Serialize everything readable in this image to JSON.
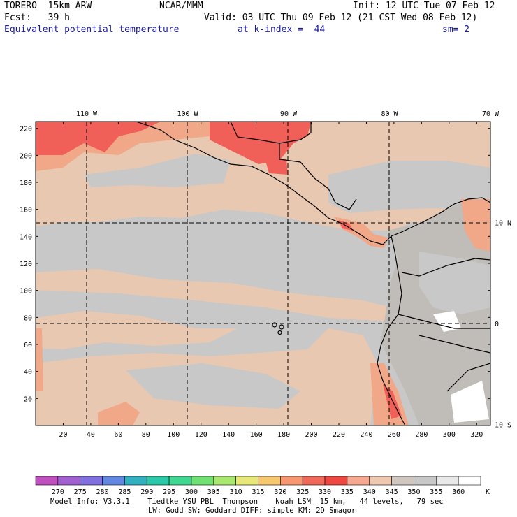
{
  "header": {
    "model": "TORERO  15km ARW",
    "center": "NCAR/MMM",
    "init": "Init: 12 UTC Tue 07 Feb 12",
    "fcst": "Fcst:   39 h",
    "valid": "Valid: 03 UTC Thu 09 Feb 12 (21 CST Wed 08 Feb 12)",
    "field": "Equivalent potential temperature",
    "level": "at k-index =  44",
    "smooth": "sm= 2"
  },
  "colors": {
    "ocean_dominant": "#c8c8c8",
    "tan": "#e8c8b0",
    "salmon": "#f0a888",
    "red": "#f06058",
    "land_gray": "#c0bcb8"
  },
  "chart_data": {
    "type": "heatmap",
    "title": "Equivalent potential temperature at k-index = 44",
    "x_grid_ticks": [
      "20",
      "40",
      "60",
      "80",
      "100",
      "120",
      "140",
      "160",
      "180",
      "200",
      "220",
      "240",
      "260",
      "280",
      "300",
      "320"
    ],
    "y_grid_ticks": [
      "20",
      "40",
      "60",
      "80",
      "100",
      "120",
      "140",
      "160",
      "180",
      "200",
      "220"
    ],
    "x_range": [
      0,
      330
    ],
    "y_range": [
      0,
      225
    ],
    "lon_labels": [
      "110 W",
      "100 W",
      "90 W",
      "80 W",
      "70 W"
    ],
    "lon_values": [
      110,
      100,
      90,
      80,
      70
    ],
    "lat_labels": [
      "10 N",
      "0",
      "10 S"
    ],
    "lat_values": [
      10,
      0,
      -10
    ],
    "colorbar": {
      "unit": "K",
      "labels": [
        "270",
        "275",
        "280",
        "285",
        "290",
        "295",
        "300",
        "305",
        "310",
        "315",
        "320",
        "325",
        "330",
        "335",
        "340",
        "345",
        "350",
        "355",
        "360"
      ],
      "colors": [
        "#c050c0",
        "#a060d0",
        "#8070e0",
        "#6088e0",
        "#30b0c0",
        "#28c8a8",
        "#40d890",
        "#70e070",
        "#a8e870",
        "#e8e878",
        "#f8c870",
        "#f89870",
        "#f06858",
        "#f04840",
        "#f8a890",
        "#f0c8b0",
        "#d0c8c0",
        "#c8c8c8",
        "#e8e8e8",
        "#ffffff"
      ]
    }
  },
  "footer": {
    "line1": "Model Info: V3.3.1    Tiedtke YSU PBL  Thompson    Noah LSM  15 km,   44 levels,   79 sec",
    "line2": "LW: Godd SW: Goddard DIFF: simple KM: 2D Smagor"
  }
}
